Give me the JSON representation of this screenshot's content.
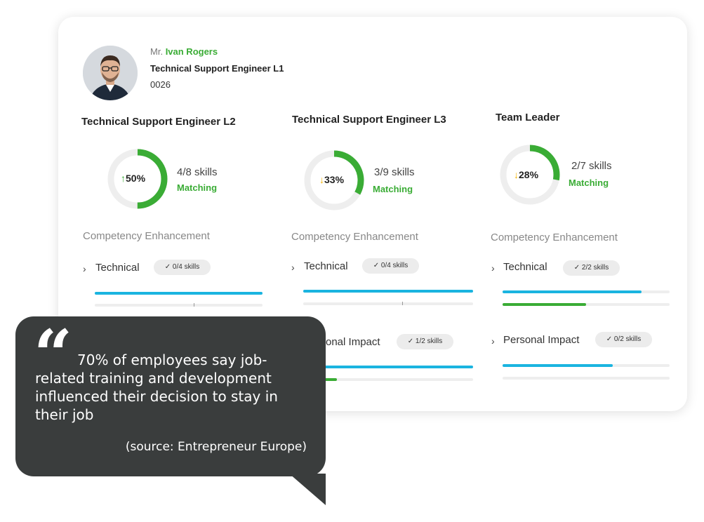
{
  "profile": {
    "salutation": "Mr.",
    "name": "Ivan Rogers",
    "role": "Technical Support Engineer L1",
    "id": "0026"
  },
  "columns": [
    {
      "title": "Technical Support Engineer L2",
      "percent": 50,
      "percent_label": "50%",
      "trend": "up",
      "skills": "4/8 skills",
      "matching": "Matching",
      "competency": "Competency Enhancement",
      "sections": [
        {
          "label": "Technical",
          "badge": "0/4 skills",
          "progress": 1.0,
          "secondary_progress": 0
        }
      ]
    },
    {
      "title": "Technical Support Engineer L3",
      "percent": 33,
      "percent_label": "33%",
      "trend": "down",
      "skills": "3/9 skills",
      "matching": "Matching",
      "competency": "Competency Enhancement",
      "sections": [
        {
          "label": "Technical",
          "badge": "0/4 skills",
          "progress": 1.0,
          "secondary_progress": 0
        },
        {
          "label": "Personal Impact",
          "visible_label": "onal Impact",
          "badge": "1/2 skills",
          "progress": 1.0,
          "secondary_progress": 0.2
        }
      ]
    },
    {
      "title": "Team Leader",
      "percent": 28,
      "percent_label": "28%",
      "trend": "down",
      "skills": "2/7 skills",
      "matching": "Matching",
      "competency": "Competency Enhancement",
      "sections": [
        {
          "label": "Technical",
          "badge": "2/2 skills",
          "progress": 0.83,
          "secondary_progress": 0.5
        },
        {
          "label": "Personal Impact",
          "badge": "0/2 skills",
          "progress": 0.66,
          "secondary_progress": 0
        }
      ]
    }
  ],
  "quote": {
    "text": "70% of employees say job-related training and development influenced their decision to stay in their job",
    "source": "(source: Entrepreneur Europe)"
  },
  "icons": {
    "check": "check-icon",
    "chevron": "chevron-right-icon",
    "quote": "quote-icon"
  },
  "colors": {
    "accent_green": "#3aac35",
    "bar_blue": "#1ab4e0",
    "trend_down": "#f5b400",
    "bubble": "#3a3d3d"
  }
}
